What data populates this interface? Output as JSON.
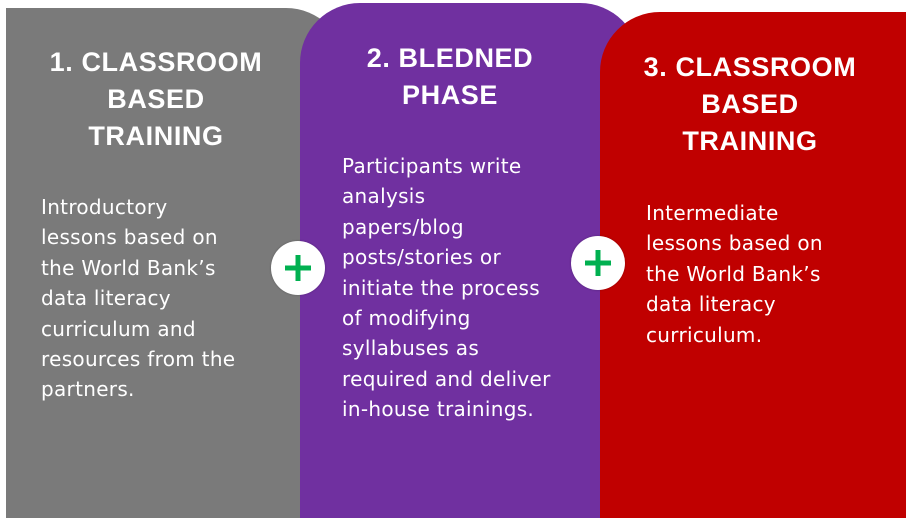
{
  "colors": {
    "panel1": "#7a7a7a",
    "panel2": "#7030a0",
    "panel3": "#c00000",
    "plus": "#00b050"
  },
  "panels": [
    {
      "title": [
        "1. CLASSROOM",
        "BASED",
        "TRAINING"
      ],
      "body": [
        "Introductory",
        "lessons based on",
        "the World Bank’s",
        "data literacy",
        "curriculum and",
        "resources from the",
        "partners."
      ]
    },
    {
      "title": [
        "2. BLEDNED",
        "PHASE"
      ],
      "body": [
        "Participants write",
        "analysis",
        "papers/blog",
        "posts/stories or",
        "initiate the process",
        "of modifying",
        "syllabuses as",
        "required and deliver",
        "in-house trainings."
      ]
    },
    {
      "title": [
        "3. CLASSROOM",
        "BASED",
        "TRAINING"
      ],
      "body": [
        "Intermediate",
        "lessons based on",
        "the World Bank’s",
        "data literacy",
        "curriculum."
      ]
    }
  ],
  "connectors": [
    {
      "icon": "plus-icon"
    },
    {
      "icon": "plus-icon"
    }
  ]
}
